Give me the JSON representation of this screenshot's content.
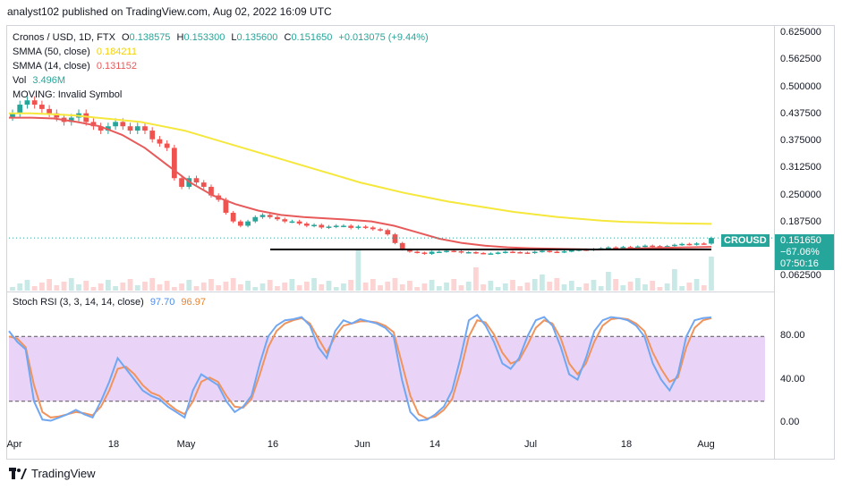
{
  "header": {
    "text": "analyst102 published on TradingView.com, Aug 02, 2022 16:09 UTC"
  },
  "legend": {
    "symbol": "Cronos / USD, 1D, FTX",
    "o_label": "O",
    "o": "0.138575",
    "h_label": "H",
    "h": "0.153300",
    "l_label": "L",
    "l": "0.135600",
    "c_label": "C",
    "c": "0.151650",
    "change": "+0.013075 (+9.44%)",
    "smma50_label": "SMMA (50, close)",
    "smma50": "0.184211",
    "smma14_label": "SMMA (14, close)",
    "smma14": "0.131152",
    "vol_label": "Vol",
    "vol": "3.496M",
    "error": "MOVING: Invalid Symbol"
  },
  "stoch": {
    "label": "Stoch RSI (3, 3, 14, 14, close)",
    "k": "97.70",
    "d": "96.97"
  },
  "price_box": {
    "value": "0.151650",
    "change": "−67.06%",
    "countdown": "07:50:16"
  },
  "badge": {
    "text": "CROUSD"
  },
  "footer": {
    "brand": "TradingView"
  },
  "colors": {
    "up": "#26a69a",
    "down": "#ef5350",
    "smma50": "#f5e73b",
    "smma14": "#e85a5a",
    "k": "#6fa7f2",
    "d": "#f0935c",
    "band": "#e1c6f5"
  },
  "chart_data": [
    {
      "type": "candlestick",
      "title": "Cronos / USD, 1D, FTX",
      "ylim": [
        0.03,
        0.64
      ],
      "y_ticks": [
        "0.625000",
        "0.562500",
        "0.500000",
        "0.437500",
        "0.375000",
        "0.312500",
        "0.250000",
        "0.187500",
        "0.125000",
        "0.062500"
      ],
      "y_tick_values": [
        0.625,
        0.5625,
        0.5,
        0.4375,
        0.375,
        0.3125,
        0.25,
        0.1875,
        0.125,
        0.0625
      ],
      "x_ticks": [
        "Apr",
        "18",
        "May",
        "16",
        "Jun",
        "14",
        "Jul",
        "18",
        "Aug"
      ],
      "close_series": [
        0.44,
        0.46,
        0.47,
        0.46,
        0.45,
        0.44,
        0.43,
        0.42,
        0.43,
        0.44,
        0.42,
        0.41,
        0.4,
        0.41,
        0.42,
        0.41,
        0.4,
        0.41,
        0.4,
        0.38,
        0.37,
        0.36,
        0.29,
        0.27,
        0.29,
        0.28,
        0.27,
        0.25,
        0.24,
        0.21,
        0.19,
        0.18,
        0.19,
        0.2,
        0.205,
        0.2,
        0.195,
        0.19,
        0.19,
        0.185,
        0.18,
        0.182,
        0.176,
        0.178,
        0.18,
        0.18,
        0.175,
        0.178,
        0.176,
        0.172,
        0.17,
        0.16,
        0.14,
        0.125,
        0.12,
        0.118,
        0.115,
        0.12,
        0.12,
        0.122,
        0.121,
        0.118,
        0.119,
        0.117,
        0.116,
        0.116,
        0.118,
        0.12,
        0.119,
        0.118,
        0.117,
        0.12,
        0.122,
        0.12,
        0.119,
        0.121,
        0.123,
        0.125,
        0.124,
        0.126,
        0.128,
        0.13,
        0.129,
        0.131,
        0.13,
        0.132,
        0.134,
        0.133,
        0.131,
        0.133,
        0.136,
        0.138,
        0.137,
        0.139,
        0.1387,
        0.1517
      ],
      "smma50": [
        0.44,
        0.44,
        0.438,
        0.435,
        0.43,
        0.425,
        0.42,
        0.41,
        0.4,
        0.385,
        0.37,
        0.355,
        0.34,
        0.325,
        0.31,
        0.295,
        0.28,
        0.268,
        0.256,
        0.246,
        0.236,
        0.228,
        0.22,
        0.212,
        0.206,
        0.2,
        0.196,
        0.192,
        0.189,
        0.1875,
        0.186,
        0.185,
        0.1842
      ],
      "smma14": [
        0.43,
        0.43,
        0.428,
        0.42,
        0.41,
        0.39,
        0.36,
        0.32,
        0.28,
        0.25,
        0.23,
        0.215,
        0.205,
        0.2,
        0.197,
        0.194,
        0.19,
        0.18,
        0.165,
        0.15,
        0.14,
        0.134,
        0.13,
        0.128,
        0.127,
        0.126,
        0.125,
        0.126,
        0.128,
        0.129,
        0.13,
        0.1312
      ],
      "support_level": 0.125,
      "last_price": 0.15165
    },
    {
      "type": "line",
      "title": "Stoch RSI (3, 3, 14, 14, close)",
      "ylim": [
        -10,
        120
      ],
      "y_ticks": [
        "80.00",
        "40.00",
        "0.00"
      ],
      "y_tick_values": [
        80,
        40,
        0
      ],
      "band": [
        20,
        80
      ],
      "series": [
        {
          "name": "K",
          "values": [
            85,
            75,
            68,
            20,
            3,
            2,
            5,
            8,
            12,
            8,
            5,
            20,
            38,
            60,
            50,
            40,
            30,
            25,
            22,
            15,
            10,
            5,
            30,
            45,
            40,
            35,
            20,
            10,
            15,
            25,
            55,
            80,
            90,
            95,
            96,
            98,
            90,
            70,
            60,
            85,
            95,
            92,
            96,
            94,
            92,
            88,
            80,
            40,
            10,
            2,
            3,
            8,
            15,
            30,
            60,
            95,
            100,
            90,
            75,
            55,
            50,
            60,
            80,
            95,
            98,
            90,
            70,
            45,
            40,
            60,
            85,
            95,
            98,
            97,
            95,
            90,
            80,
            55,
            40,
            30,
            45,
            80,
            95,
            97,
            97.7
          ]
        },
        {
          "name": "D",
          "values": [
            80,
            78,
            70,
            35,
            10,
            5,
            6,
            8,
            10,
            9,
            7,
            15,
            30,
            50,
            52,
            45,
            35,
            28,
            25,
            18,
            12,
            8,
            20,
            38,
            42,
            38,
            25,
            15,
            14,
            22,
            45,
            70,
            85,
            92,
            95,
            97,
            92,
            78,
            65,
            80,
            90,
            92,
            94,
            94,
            93,
            90,
            84,
            55,
            25,
            8,
            4,
            6,
            12,
            22,
            48,
            80,
            95,
            93,
            82,
            65,
            55,
            58,
            72,
            88,
            95,
            92,
            78,
            55,
            45,
            55,
            75,
            90,
            96,
            97,
            96,
            92,
            85,
            65,
            50,
            38,
            42,
            70,
            88,
            95,
            96.97
          ]
        }
      ]
    }
  ]
}
